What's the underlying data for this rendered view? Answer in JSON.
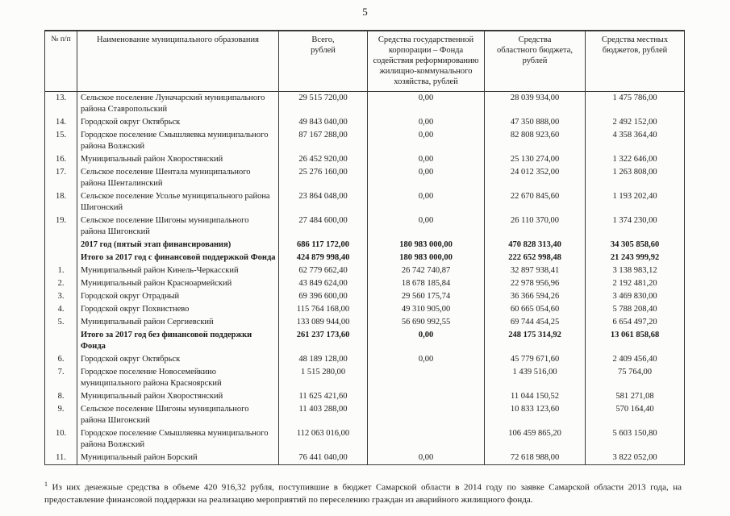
{
  "page": {
    "number": "5"
  },
  "table": {
    "headers": {
      "num": "№ п/п",
      "name": "Наименование муниципального образования",
      "total": "Всего,\nрублей",
      "fund": "Средства государственной\nкорпорации – Фонда\nсодействия реформированию\nжилищно-коммунального\nхозяйства, рублей",
      "regional": "Средства\nобластного бюджета,\nрублей",
      "local": "Средства местных\nбюджетов, рублей"
    },
    "rows": [
      {
        "num": "13.",
        "name": "Сельское поселение Луначарский муниципального района Ставропольский",
        "total": "29 515 720,00",
        "fund": "0,00",
        "regional": "28 039 934,00",
        "local": "1 475 786,00",
        "bold": false
      },
      {
        "num": "14.",
        "name": "Городской округ Октябрьск",
        "total": "49 843 040,00",
        "fund": "0,00",
        "regional": "47 350 888,00",
        "local": "2 492 152,00",
        "bold": false
      },
      {
        "num": "15.",
        "name": "Городское поселение Смышляевка муниципального района Волжский",
        "total": "87 167 288,00",
        "fund": "0,00",
        "regional": "82 808 923,60",
        "local": "4 358 364,40",
        "bold": false
      },
      {
        "num": "16.",
        "name": "Муниципальный район Хворостянский",
        "total": "26 452 920,00",
        "fund": "0,00",
        "regional": "25 130 274,00",
        "local": "1 322 646,00",
        "bold": false
      },
      {
        "num": "17.",
        "name": "Сельское поселение Шентала муниципального района Шенталинский",
        "total": "25 276 160,00",
        "fund": "0,00",
        "regional": "24 012 352,00",
        "local": "1 263 808,00",
        "bold": false
      },
      {
        "num": "18.",
        "name": "Сельское поселение Усолье муниципального района Шигонский",
        "total": "23 864 048,00",
        "fund": "0,00",
        "regional": "22 670 845,60",
        "local": "1 193 202,40",
        "bold": false
      },
      {
        "num": "19.",
        "name": "Сельское поселение Шигоны муниципального района Шигонский",
        "total": "27 484 600,00",
        "fund": "0,00",
        "regional": "26 110 370,00",
        "local": "1 374 230,00",
        "bold": false
      },
      {
        "num": "",
        "name": "2017 год (пятый этап финансирования)",
        "total": "686 117 172,00",
        "fund": "180 983 000,00",
        "regional": "470 828 313,40",
        "local": "34 305 858,60",
        "bold": true
      },
      {
        "num": "",
        "name": "Итого за 2017 год с финансовой поддержкой Фонда",
        "total": "424 879 998,40",
        "fund": "180 983 000,00",
        "regional": "222 652 998,48",
        "local": "21 243 999,92",
        "bold": true
      },
      {
        "num": "1.",
        "name": "Муниципальный район Кинель-Черкасский",
        "total": "62 779 662,40",
        "fund": "26 742 740,87",
        "regional": "32 897 938,41",
        "local": "3 138 983,12",
        "bold": false
      },
      {
        "num": "2.",
        "name": "Муниципальный район Красноармейский",
        "total": "43 849 624,00",
        "fund": "18 678 185,84",
        "regional": "22 978 956,96",
        "local": "2 192 481,20",
        "bold": false
      },
      {
        "num": "3.",
        "name": "Городской округ Отрадный",
        "total": "69 396 600,00",
        "fund": "29 560 175,74",
        "regional": "36 366 594,26",
        "local": "3 469 830,00",
        "bold": false
      },
      {
        "num": "4.",
        "name": "Городской округ Похвистнево",
        "total": "115 764 168,00",
        "fund": "49 310 905,00",
        "regional": "60 665 054,60",
        "local": "5 788 208,40",
        "bold": false
      },
      {
        "num": "5.",
        "name": "Муниципальный район Сергиевский",
        "total": "133 089 944,00",
        "fund": "56 690 992,55",
        "regional": "69 744 454,25",
        "local": "6 654 497,20",
        "bold": false
      },
      {
        "num": "",
        "name": "Итого за 2017 год без финансовой поддержки Фонда",
        "total": "261 237 173,60",
        "fund": "0,00",
        "regional": "248 175 314,92",
        "local": "13 061 858,68",
        "bold": true
      },
      {
        "num": "6.",
        "name": "Городской округ Октябрьск",
        "total": "48 189 128,00",
        "fund": "0,00",
        "regional": "45 779 671,60",
        "local": "2 409 456,40",
        "bold": false
      },
      {
        "num": "7.",
        "name": "Городское поселение Новосемейкино муниципального района Красноярский",
        "total": "1 515 280,00",
        "fund": "",
        "regional": "1 439 516,00",
        "local": "75 764,00",
        "bold": false
      },
      {
        "num": "8.",
        "name": "Муниципальный район Хворостянский",
        "total": "11 625 421,60",
        "fund": "",
        "regional": "11 044 150,52",
        "local": "581 271,08",
        "bold": false
      },
      {
        "num": "9.",
        "name": "Сельское поселение Шигоны муниципального района Шигонский",
        "total": "11 403 288,00",
        "fund": "",
        "regional": "10 833 123,60",
        "local": "570 164,40",
        "bold": false
      },
      {
        "num": "10.",
        "name": "Городское поселение Смышляевка муниципального района Волжский",
        "total": "112 063 016,00",
        "fund": "",
        "regional": "106 459 865,20",
        "local": "5 603 150,80",
        "bold": false
      },
      {
        "num": "11.",
        "name": "Муниципальный район Борский",
        "total": "76 441 040,00",
        "fund": "0,00",
        "regional": "72 618 988,00",
        "local": "3 822 052,00",
        "bold": false
      }
    ]
  },
  "footnote": {
    "marker": "1",
    "text": "Из них денежные средства в объеме 420 916,32 рубля, поступившие в бюджет Самарской области в 2014 году по заявке Самарской области 2013 года, на предоставление финансовой поддержки на реализацию мероприятий по переселению граждан из аварийного жилищного фонда."
  }
}
